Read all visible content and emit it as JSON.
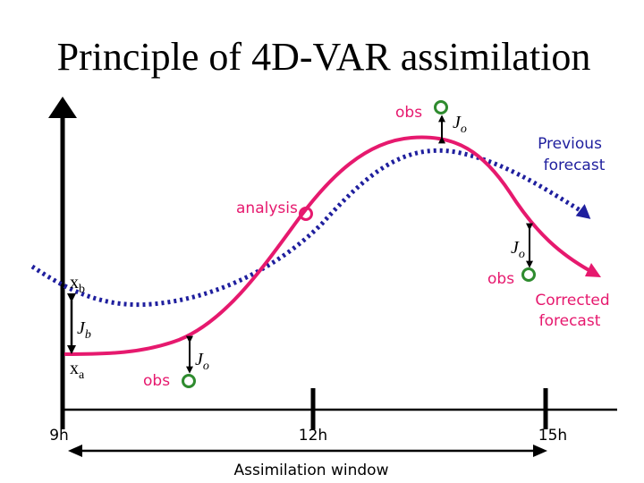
{
  "title": "Principle of 4D-VAR assimilation",
  "colors": {
    "analysis_curve": "#e6196e",
    "background_curve": "#1f1f9e",
    "observation": "#2e8b2e",
    "axis": "#000000",
    "label_pink": "#e6196e",
    "label_blue": "#1f1f9e"
  },
  "labels": {
    "obs_top": "obs",
    "obs_right": "obs",
    "obs_bottom": "obs",
    "jo_top": "J",
    "jo_right": "J",
    "jo_bottom": "J",
    "jo_subscript": "o",
    "jb": "J",
    "jb_subscript": "b",
    "xb": "x",
    "xb_subscript": "b",
    "xa": "x",
    "xa_subscript": "a",
    "analysis": "analysis",
    "previous_forecast_line1": "Previous",
    "previous_forecast_line2": "forecast",
    "corrected_forecast_line1": "Corrected",
    "corrected_forecast_line2": "forecast"
  },
  "axis": {
    "ticks": [
      "9h",
      "12h",
      "15h"
    ],
    "window_label": "Assimilation window"
  },
  "icons": {
    "observation": "circle-marker-icon",
    "arrow_head": "arrow-head-icon"
  }
}
